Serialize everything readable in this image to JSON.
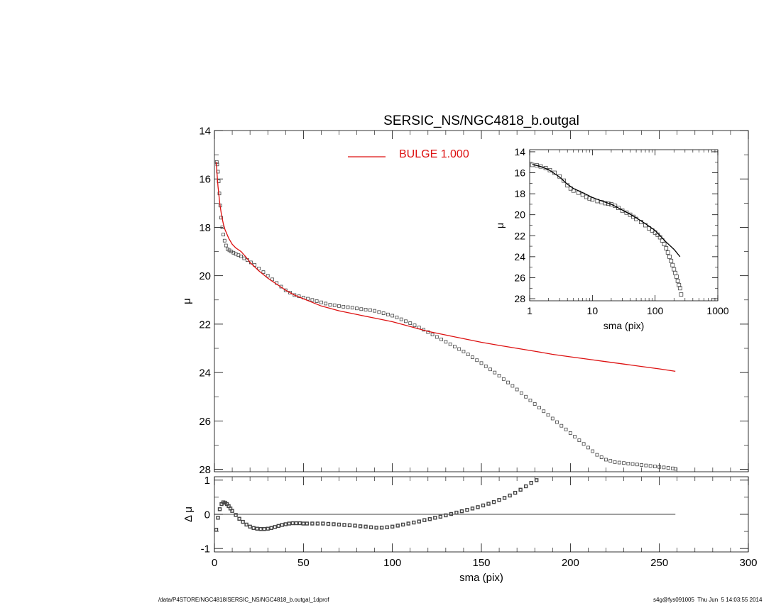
{
  "footer": {
    "path": "/data/P4STORE/NGC4818/SERSIC_NS/NGC4818_b.outgal_1dprof",
    "stamp": "s4g@fys091005  Thu Jun  5 14:03:55 2014"
  },
  "colors": {
    "model": "#dd1111",
    "data_markers": "#444444",
    "axes": "#000000"
  },
  "chart_data": [
    {
      "id": "main",
      "type": "scatter",
      "title": "SERSIC_NS/NGC4818_b.outgal",
      "xlabel": "",
      "ylabel": "μ",
      "xlim": [
        0,
        300
      ],
      "ylim": [
        28.1,
        14
      ],
      "y_inverted": true,
      "xticks": [
        0,
        50,
        100,
        150,
        200,
        250,
        300
      ],
      "yticks": [
        14,
        16,
        18,
        20,
        22,
        24,
        26,
        28
      ],
      "legend": {
        "placement": "top-center",
        "entries": [
          {
            "label": "BULGE  1.000",
            "color": "#dd1111"
          }
        ]
      },
      "series": [
        {
          "name": "",
          "kind": "points",
          "x": [
            1.3,
            1.6,
            2,
            2.4,
            2.8,
            3.3,
            3.8,
            4.4,
            5,
            5.7,
            6.5,
            7.4,
            8.4,
            9.5,
            10.7,
            12,
            13.5,
            15,
            16.7,
            18.5,
            20.5,
            22.6,
            25,
            27.5,
            30,
            32.5,
            35,
            37.5,
            40,
            42.5,
            45,
            47.5,
            50,
            52.5,
            55,
            57.5,
            60,
            62.5,
            65,
            67.5,
            70,
            72.5,
            75,
            77.5,
            80,
            82.5,
            85,
            87.5,
            90,
            92.5,
            95,
            97.5,
            100,
            102.5,
            105,
            107.5,
            110,
            112.5,
            115,
            117.5,
            120,
            122.5,
            125,
            127.5,
            130,
            132.5,
            135,
            137.5,
            140,
            142.5,
            145,
            147.5,
            150,
            152.5,
            155,
            157.5,
            160,
            162.5,
            165,
            167.5,
            170,
            172.5,
            175,
            177.5,
            180,
            182.5,
            185,
            187.5,
            190,
            192.5,
            195,
            197.5,
            200,
            202.5,
            205,
            207.5,
            210,
            212.5,
            215,
            217.5,
            220,
            222.5,
            225,
            227.5,
            230,
            232.5,
            235,
            237.5,
            240,
            242.5,
            245,
            247.5,
            250,
            252.5,
            255,
            257.5,
            259
          ],
          "y": [
            15.3,
            15.4,
            15.7,
            16.1,
            16.6,
            17.1,
            17.6,
            18.0,
            18.3,
            18.55,
            18.75,
            18.9,
            18.95,
            19.0,
            19.05,
            19.1,
            19.15,
            19.2,
            19.28,
            19.35,
            19.45,
            19.55,
            19.7,
            19.85,
            20.0,
            20.15,
            20.3,
            20.45,
            20.6,
            20.7,
            20.8,
            20.85,
            20.9,
            20.95,
            21.0,
            21.05,
            21.1,
            21.15,
            21.2,
            21.22,
            21.25,
            21.28,
            21.3,
            21.32,
            21.35,
            21.38,
            21.4,
            21.42,
            21.45,
            21.5,
            21.55,
            21.6,
            21.65,
            21.72,
            21.8,
            21.88,
            21.96,
            22.05,
            22.14,
            22.23,
            22.33,
            22.43,
            22.53,
            22.63,
            22.73,
            22.83,
            22.93,
            23.03,
            23.13,
            23.25,
            23.37,
            23.49,
            23.61,
            23.74,
            23.87,
            24.0,
            24.13,
            24.27,
            24.41,
            24.55,
            24.7,
            24.85,
            25.0,
            25.15,
            25.3,
            25.45,
            25.6,
            25.75,
            25.9,
            26.05,
            26.2,
            26.35,
            26.5,
            26.65,
            26.8,
            26.95,
            27.1,
            27.25,
            27.4,
            27.5,
            27.6,
            27.65,
            27.7,
            27.72,
            27.74,
            27.76,
            27.78,
            27.8,
            27.82,
            27.84,
            27.86,
            27.88,
            27.9,
            27.92,
            27.94,
            27.96,
            27.98
          ]
        },
        {
          "name": "BULGE  1.000",
          "kind": "line",
          "color": "#dd1111",
          "x": [
            1,
            2,
            3,
            4,
            5,
            6,
            8,
            10,
            12,
            15,
            18,
            20,
            25,
            30,
            35,
            40,
            45,
            50,
            60,
            70,
            80,
            90,
            100,
            110,
            120,
            130,
            140,
            150,
            160,
            170,
            180,
            190,
            200,
            210,
            220,
            230,
            240,
            250,
            259
          ],
          "y": [
            15.3,
            16.3,
            17.0,
            17.5,
            17.85,
            18.1,
            18.45,
            18.7,
            18.85,
            19.0,
            19.25,
            19.45,
            19.8,
            20.1,
            20.35,
            20.6,
            20.8,
            20.95,
            21.25,
            21.45,
            21.6,
            21.75,
            21.9,
            22.1,
            22.3,
            22.45,
            22.6,
            22.75,
            22.88,
            23.0,
            23.12,
            23.25,
            23.35,
            23.45,
            23.55,
            23.65,
            23.75,
            23.85,
            23.95
          ]
        }
      ]
    },
    {
      "id": "residual",
      "type": "scatter",
      "xlabel": "sma (pix)",
      "ylabel": "Δ μ",
      "xlim": [
        0,
        300
      ],
      "ylim": [
        -1.1,
        1.1
      ],
      "xticks": [
        0,
        50,
        100,
        150,
        200,
        250,
        300
      ],
      "yticks": [
        -1,
        0,
        1
      ],
      "zero_line": {
        "y": 0,
        "xmax": 259
      },
      "series": [
        {
          "name": "",
          "kind": "points",
          "x": [
            1,
            2,
            3,
            4,
            5,
            6,
            7,
            8,
            9,
            10,
            12,
            14,
            16,
            18,
            20,
            22,
            24,
            26,
            28,
            30,
            32,
            34,
            36,
            38,
            40,
            42,
            44,
            46,
            48,
            50,
            52,
            55,
            58,
            61,
            64,
            67,
            70,
            73,
            76,
            79,
            82,
            85,
            88,
            91,
            94,
            97,
            100,
            103,
            106,
            109,
            112,
            115,
            118,
            121,
            124,
            127,
            130,
            133,
            136,
            139,
            142,
            145,
            148,
            151,
            154,
            157,
            160,
            163,
            166,
            169,
            172,
            175,
            178,
            181
          ],
          "y": [
            -0.45,
            -0.1,
            0.15,
            0.3,
            0.35,
            0.34,
            0.3,
            0.24,
            0.17,
            0.1,
            -0.02,
            -0.13,
            -0.22,
            -0.3,
            -0.36,
            -0.4,
            -0.42,
            -0.43,
            -0.43,
            -0.42,
            -0.4,
            -0.37,
            -0.34,
            -0.31,
            -0.29,
            -0.27,
            -0.26,
            -0.26,
            -0.26,
            -0.27,
            -0.27,
            -0.27,
            -0.27,
            -0.27,
            -0.28,
            -0.29,
            -0.3,
            -0.31,
            -0.32,
            -0.33,
            -0.35,
            -0.36,
            -0.38,
            -0.39,
            -0.39,
            -0.38,
            -0.36,
            -0.33,
            -0.3,
            -0.27,
            -0.24,
            -0.21,
            -0.17,
            -0.14,
            -0.1,
            -0.07,
            -0.03,
            0.01,
            0.05,
            0.09,
            0.13,
            0.17,
            0.21,
            0.26,
            0.31,
            0.36,
            0.42,
            0.48,
            0.55,
            0.63,
            0.72,
            0.82,
            0.92,
            1.0
          ]
        }
      ]
    },
    {
      "id": "inset",
      "type": "scatter",
      "xlabel": "sma (pix)",
      "ylabel": "μ",
      "x_scale": "log",
      "xlim": [
        1,
        1000
      ],
      "ylim": [
        28.2,
        13.8
      ],
      "y_inverted": true,
      "xticks": [
        1,
        10,
        100,
        1000
      ],
      "xtick_labels": [
        "1",
        "10",
        "100",
        "1000"
      ],
      "yticks": [
        14,
        16,
        18,
        20,
        22,
        24,
        26,
        28
      ],
      "series": [
        {
          "name": "",
          "kind": "points",
          "x": [
            1.1,
            1.3,
            1.5,
            1.8,
            2.1,
            2.5,
            3,
            3.5,
            4,
            4.5,
            5,
            6,
            7,
            8,
            9,
            10,
            12,
            14,
            16,
            18,
            20,
            23,
            26,
            30,
            35,
            40,
            45,
            50,
            60,
            70,
            80,
            90,
            100,
            110,
            120,
            130,
            140,
            150,
            160,
            170,
            180,
            190,
            200,
            210,
            220,
            230,
            240,
            250,
            260
          ],
          "y": [
            15.25,
            15.3,
            15.4,
            15.55,
            15.75,
            16.0,
            16.35,
            16.75,
            17.2,
            17.5,
            17.7,
            17.9,
            18.1,
            18.3,
            18.45,
            18.55,
            18.7,
            18.8,
            18.9,
            18.95,
            19.0,
            19.15,
            19.35,
            19.6,
            19.8,
            20.0,
            20.2,
            20.4,
            20.7,
            21.0,
            21.3,
            21.5,
            21.7,
            21.9,
            22.15,
            22.45,
            22.8,
            23.2,
            23.6,
            24.0,
            24.4,
            24.8,
            25.2,
            25.55,
            25.9,
            26.3,
            26.7,
            27.0,
            27.6
          ]
        },
        {
          "name": "",
          "kind": "line",
          "color": "#000000",
          "x": [
            1.1,
            1.5,
            2,
            3,
            4,
            5,
            7,
            10,
            15,
            20,
            30,
            40,
            50,
            70,
            100,
            120,
            150,
            200,
            250
          ],
          "y": [
            15.2,
            15.4,
            15.7,
            16.4,
            17.1,
            17.5,
            17.9,
            18.35,
            18.75,
            19.0,
            19.55,
            19.95,
            20.3,
            20.85,
            21.5,
            22.0,
            22.6,
            23.3,
            24.0
          ]
        }
      ]
    }
  ]
}
